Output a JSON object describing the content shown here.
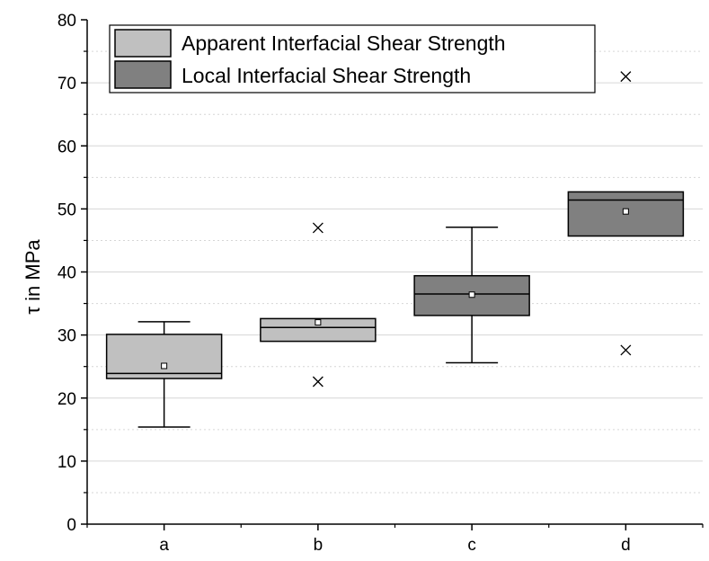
{
  "chart_data": {
    "type": "box",
    "title": "",
    "xlabel": "",
    "ylabel": "τ in MPa",
    "ylim": [
      0,
      80
    ],
    "yticks": [
      0,
      10,
      20,
      30,
      40,
      50,
      60,
      70,
      80
    ],
    "grid": "horizontal, solid at major ticks, dotted at minor ticks",
    "legend_position": "top-left",
    "categories": [
      "a",
      "b",
      "c",
      "d"
    ],
    "series": [
      {
        "name": "Apparent Interfacial Shear Strength",
        "color": "#c0c0c0",
        "categories": [
          "a",
          "b"
        ]
      },
      {
        "name": "Local Interfacial Shear Strength",
        "color": "#808080",
        "categories": [
          "c",
          "d"
        ]
      }
    ],
    "boxes": [
      {
        "category": "a",
        "series": 0,
        "whisker_low": 15.4,
        "q1": 23.1,
        "median": 23.9,
        "q3": 30.1,
        "whisker_high": 32.1,
        "mean": 25.1,
        "outliers": []
      },
      {
        "category": "b",
        "series": 0,
        "whisker_low": 29.0,
        "q1": 29.0,
        "median": 31.2,
        "q3": 32.6,
        "whisker_high": 32.6,
        "mean": 32.0,
        "outliers": [
          47.0,
          22.6
        ]
      },
      {
        "category": "c",
        "series": 1,
        "whisker_low": 25.6,
        "q1": 33.1,
        "median": 36.5,
        "q3": 39.4,
        "whisker_high": 47.1,
        "mean": 36.4,
        "outliers": []
      },
      {
        "category": "d",
        "series": 1,
        "whisker_low": 45.7,
        "q1": 45.7,
        "median": 51.4,
        "q3": 52.7,
        "whisker_high": 52.7,
        "mean": 49.6,
        "outliers": [
          71.0,
          27.6
        ]
      }
    ]
  }
}
